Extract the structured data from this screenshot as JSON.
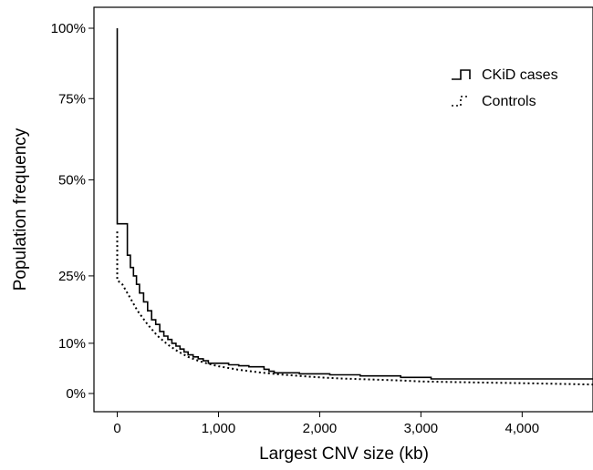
{
  "chart_data": {
    "type": "line",
    "title": "",
    "xlabel": "Largest CNV size (kb)",
    "ylabel": "Population frequency",
    "xlim": [
      -230,
      4700
    ],
    "x_ticks": [
      0,
      1000,
      2000,
      3000,
      4000
    ],
    "x_tick_labels": [
      "0",
      "1,000",
      "2,000",
      "3,000",
      "4,000"
    ],
    "y_scale": "log(1+x)",
    "ylim": [
      0,
      1.1
    ],
    "y_ticks": [
      0,
      0.1,
      0.25,
      0.5,
      0.75,
      1.0
    ],
    "y_tick_labels": [
      "0%",
      "10%",
      "25%",
      "50%",
      "75%",
      "100%"
    ],
    "grid": false,
    "legend": {
      "position": "top-right"
    },
    "series": [
      {
        "name": "CKiD cases",
        "line_style": "solid",
        "step": true,
        "color": "#000000",
        "x": [
          0,
          0,
          100,
          130,
          160,
          190,
          220,
          260,
          300,
          340,
          380,
          420,
          460,
          500,
          540,
          580,
          620,
          660,
          700,
          750,
          800,
          850,
          900,
          1100,
          1200,
          1300,
          1450,
          1500,
          1550,
          1800,
          2100,
          2400,
          2800,
          3100,
          4700
        ],
        "y": [
          1.0,
          0.38,
          0.3,
          0.27,
          0.25,
          0.23,
          0.21,
          0.19,
          0.17,
          0.15,
          0.14,
          0.125,
          0.115,
          0.108,
          0.1,
          0.094,
          0.088,
          0.082,
          0.076,
          0.072,
          0.068,
          0.064,
          0.059,
          0.056,
          0.054,
          0.052,
          0.047,
          0.043,
          0.04,
          0.038,
          0.036,
          0.034,
          0.031,
          0.028,
          0.028
        ]
      },
      {
        "name": "Controls",
        "line_style": "dotted",
        "step": false,
        "color": "#000000",
        "x": [
          0,
          0,
          50,
          100,
          150,
          200,
          300,
          400,
          500,
          600,
          700,
          800,
          900,
          1000,
          1200,
          1400,
          1600,
          1800,
          2000,
          2200,
          2500,
          2800,
          3000,
          3300,
          3600,
          3900,
          4200,
          4500,
          4700
        ],
        "y": [
          0.36,
          0.24,
          0.23,
          0.21,
          0.19,
          0.17,
          0.14,
          0.115,
          0.097,
          0.083,
          0.072,
          0.064,
          0.058,
          0.053,
          0.046,
          0.041,
          0.037,
          0.034,
          0.031,
          0.029,
          0.027,
          0.025,
          0.023,
          0.022,
          0.021,
          0.02,
          0.019,
          0.018,
          0.017
        ]
      }
    ]
  }
}
